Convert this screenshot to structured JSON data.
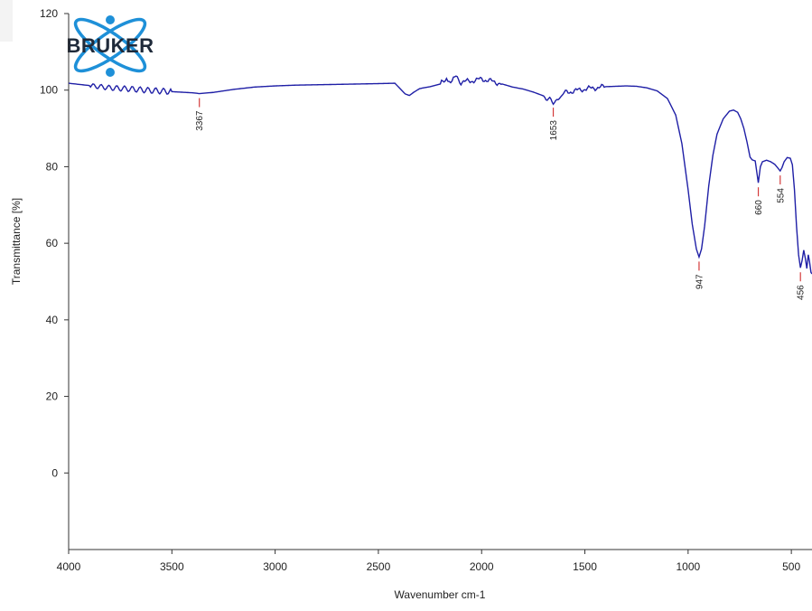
{
  "logo": {
    "text": "BRUKER",
    "icon": "atom-orbit-icon",
    "color": "#1e90d8",
    "text_color": "#1f2a3a"
  },
  "chart_data": {
    "type": "line",
    "title": "",
    "xlabel": "Wavenumber cm-1",
    "ylabel": "Transmittance [%]",
    "xlim": [
      4000,
      400
    ],
    "x_reversed": true,
    "ylim": [
      -20,
      120
    ],
    "grid": false,
    "line_color": "#1f1fa6",
    "peak_marker_color": "#d43a3a",
    "x_ticks": [
      4000,
      3500,
      3000,
      2500,
      2000,
      1500,
      1000,
      500
    ],
    "y_ticks": [
      0,
      20,
      40,
      60,
      80,
      100,
      120
    ],
    "series": [
      {
        "x": [
          4000,
          3900,
          3800,
          3700,
          3600,
          3500,
          3400,
          3367,
          3300,
          3200,
          3100,
          3000,
          2900,
          2800,
          2700,
          2600,
          2500,
          2420,
          2370,
          2350,
          2330,
          2300,
          2250,
          2200,
          2170,
          2150,
          2130,
          2100,
          2050,
          2000,
          1950,
          1900,
          1850,
          1800,
          1750,
          1700,
          1670,
          1653,
          1630,
          1600,
          1550,
          1500,
          1450,
          1400,
          1350,
          1300,
          1250,
          1200,
          1150,
          1100,
          1060,
          1030,
          1000,
          980,
          960,
          947,
          935,
          920,
          900,
          880,
          860,
          830,
          800,
          780,
          760,
          745,
          730,
          715,
          700,
          690,
          675,
          660,
          650,
          640,
          620,
          600,
          580,
          560,
          554,
          545,
          535,
          520,
          505,
          495,
          485,
          475,
          465,
          456,
          448,
          440,
          432,
          425,
          418,
          412,
          405,
          400
        ],
        "y": [
          101.8,
          101.2,
          100.6,
          100.3,
          99.9,
          99.6,
          99.3,
          99.1,
          99.4,
          100.2,
          100.8,
          101.1,
          101.3,
          101.4,
          101.5,
          101.6,
          101.7,
          101.8,
          99.0,
          98.6,
          99.4,
          100.4,
          100.9,
          101.6,
          103.2,
          102.0,
          103.5,
          102.1,
          102.4,
          102.9,
          102.3,
          101.6,
          100.8,
          100.3,
          99.5,
          98.5,
          97.4,
          96.6,
          97.7,
          99.3,
          99.8,
          100.3,
          100.6,
          100.9,
          101.0,
          101.1,
          101.0,
          100.6,
          99.8,
          97.8,
          93.5,
          86.0,
          74.0,
          65.0,
          58.5,
          56.4,
          58.5,
          64.5,
          75.0,
          83.0,
          88.5,
          92.5,
          94.5,
          94.8,
          94.2,
          92.5,
          90.0,
          86.5,
          82.5,
          81.8,
          81.5,
          75.8,
          80.0,
          81.3,
          81.7,
          81.3,
          80.6,
          79.3,
          78.9,
          79.8,
          81.3,
          82.4,
          82.2,
          80.5,
          74.0,
          64.5,
          57.0,
          53.6,
          55.5,
          58.2,
          56.0,
          53.4,
          57.0,
          55.2,
          52.4,
          52.0
        ]
      }
    ],
    "peaks": [
      {
        "x": 3367,
        "y": 99.1,
        "label": "3367"
      },
      {
        "x": 1653,
        "y": 96.6,
        "label": "1653"
      },
      {
        "x": 947,
        "y": 56.4,
        "label": "947"
      },
      {
        "x": 660,
        "y": 75.8,
        "label": "660"
      },
      {
        "x": 554,
        "y": 78.9,
        "label": "554"
      },
      {
        "x": 456,
        "y": 53.6,
        "label": "456"
      }
    ]
  }
}
